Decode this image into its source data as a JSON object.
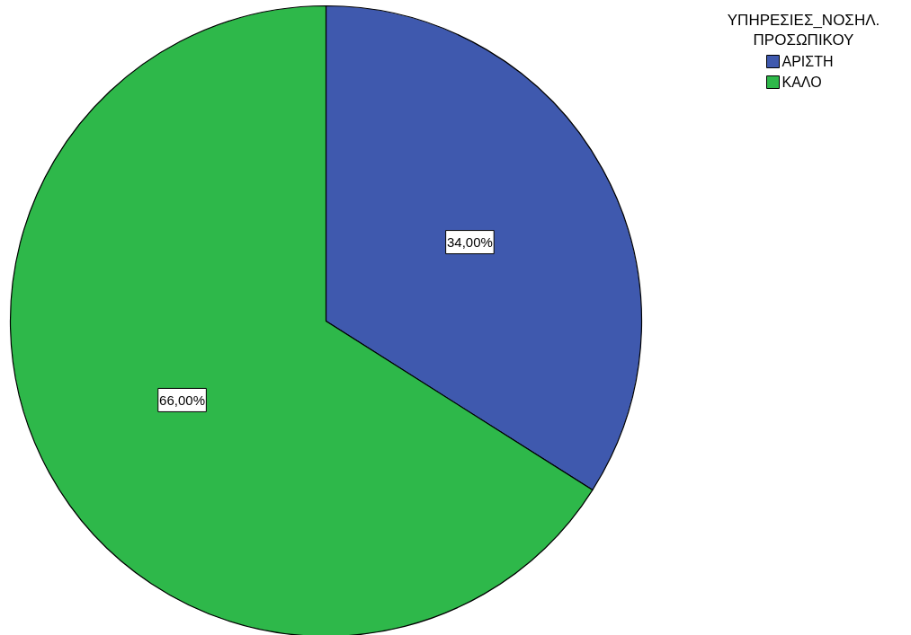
{
  "chart_data": {
    "type": "pie",
    "legend_title": "ΥΠΗΡΕΣΙΕΣ_ΝΟΣΗΛ. ΠΡΟΣΩΠΙΚΟΥ",
    "categories": [
      "ΑΡΙΣΤΗ",
      "ΚΑΛΟ"
    ],
    "values": [
      34,
      66
    ],
    "colors": [
      "#3f59ae",
      "#2eb84a"
    ],
    "value_labels": [
      "34,00%",
      "66,00%"
    ],
    "legend": "top right"
  }
}
